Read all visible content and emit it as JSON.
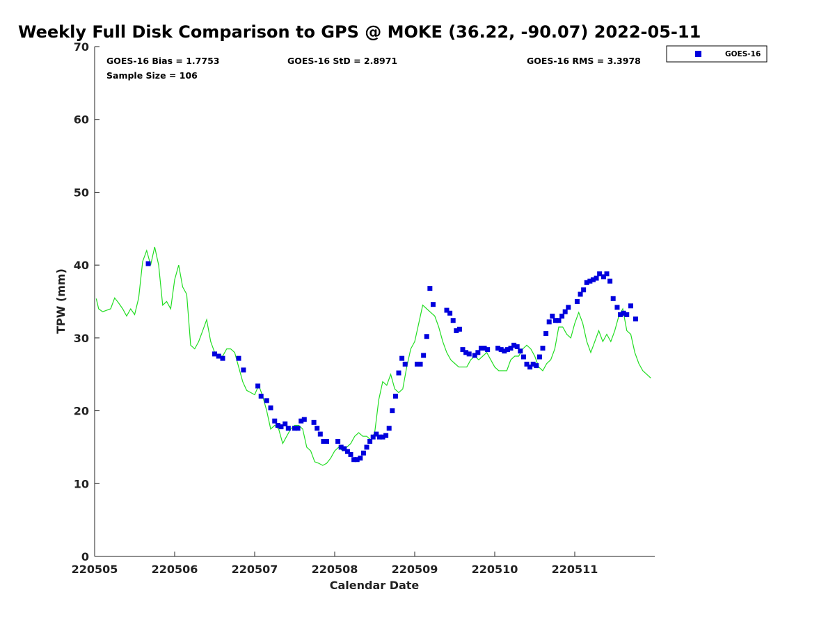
{
  "chart_data": {
    "type": "scatter",
    "title": "Weekly Full Disk Comparison to GPS @ MOKE (36.22, -90.07) 2022-05-11",
    "xlabel": "Calendar Date",
    "ylabel": "TPW (mm)",
    "xlim": [
      0,
      7
    ],
    "ylim": [
      0,
      70
    ],
    "x_ticks": [
      0,
      1,
      2,
      3,
      4,
      5,
      6
    ],
    "x_tick_labels": [
      "220505",
      "220506",
      "220507",
      "220508",
      "220509",
      "220510",
      "220511"
    ],
    "y_ticks": [
      0,
      10,
      20,
      30,
      40,
      50,
      60,
      70
    ],
    "y_tick_labels": [
      "0",
      "10",
      "20",
      "30",
      "40",
      "50",
      "60",
      "70"
    ],
    "stats": {
      "bias": "GOES-16 Bias = 1.7753",
      "std": "GOES-16 StD = 2.8971",
      "rms": "GOES-16 RMS = 3.3978",
      "sample": "Sample Size = 106"
    },
    "legend": {
      "position": "top-right-outside",
      "entries": [
        {
          "label": "GOES-16",
          "color": "#0000dd",
          "marker": "square"
        }
      ]
    },
    "series": [
      {
        "name": "GPS",
        "type": "line",
        "color": "#22dd22",
        "x": [
          0.02,
          0.05,
          0.1,
          0.15,
          0.2,
          0.25,
          0.3,
          0.35,
          0.4,
          0.45,
          0.5,
          0.55,
          0.6,
          0.65,
          0.7,
          0.75,
          0.8,
          0.85,
          0.9,
          0.95,
          1.0,
          1.05,
          1.1,
          1.15,
          1.2,
          1.25,
          1.3,
          1.35,
          1.4,
          1.45,
          1.5,
          1.55,
          1.6,
          1.65,
          1.7,
          1.75,
          1.8,
          1.85,
          1.9,
          1.95,
          2.0,
          2.05,
          2.1,
          2.15,
          2.2,
          2.25,
          2.3,
          2.35,
          2.4,
          2.45,
          2.5,
          2.55,
          2.6,
          2.65,
          2.7,
          2.75,
          2.8,
          2.85,
          2.9,
          2.95,
          3.0,
          3.05,
          3.1,
          3.15,
          3.2,
          3.25,
          3.3,
          3.35,
          3.4,
          3.45,
          3.5,
          3.55,
          3.6,
          3.65,
          3.7,
          3.75,
          3.8,
          3.85,
          3.9,
          3.95,
          4.0,
          4.05,
          4.1,
          4.15,
          4.2,
          4.25,
          4.3,
          4.35,
          4.4,
          4.45,
          4.5,
          4.55,
          4.6,
          4.65,
          4.7,
          4.75,
          4.8,
          4.85,
          4.9,
          4.95,
          5.0,
          5.05,
          5.1,
          5.15,
          5.2,
          5.25,
          5.3,
          5.35,
          5.4,
          5.45,
          5.5,
          5.55,
          5.6,
          5.65,
          5.7,
          5.75,
          5.8,
          5.85,
          5.9,
          5.95,
          6.0,
          6.05,
          6.1,
          6.15,
          6.2,
          6.25,
          6.3,
          6.35,
          6.4,
          6.45,
          6.5,
          6.55,
          6.6,
          6.65,
          6.7,
          6.75,
          6.8,
          6.85,
          6.9,
          6.95
        ],
        "y": [
          35.4,
          34.0,
          33.6,
          33.8,
          34.0,
          35.5,
          34.8,
          34.0,
          33.0,
          34.0,
          33.2,
          35.5,
          40.5,
          42.0,
          40.0,
          42.5,
          40.0,
          34.5,
          35.0,
          34.0,
          38.0,
          40.0,
          37.0,
          36.0,
          29.0,
          28.5,
          29.5,
          31.0,
          32.5,
          29.5,
          28.0,
          27.5,
          27.5,
          28.5,
          28.5,
          28.0,
          26.0,
          24.0,
          22.8,
          22.5,
          22.2,
          23.5,
          22.0,
          20.0,
          17.5,
          18.0,
          17.5,
          15.5,
          16.5,
          17.5,
          18.0,
          18.0,
          17.5,
          15.0,
          14.5,
          13.0,
          12.8,
          12.5,
          12.8,
          13.5,
          14.5,
          15.0,
          14.5,
          15.0,
          15.5,
          16.5,
          17.0,
          16.5,
          16.5,
          16.0,
          17.0,
          21.5,
          24.0,
          23.5,
          25.0,
          23.0,
          22.5,
          23.0,
          26.0,
          28.5,
          29.5,
          32.0,
          34.5,
          34.0,
          33.5,
          33.0,
          31.5,
          29.5,
          28.0,
          27.0,
          26.5,
          26.0,
          26.0,
          26.0,
          27.0,
          27.5,
          27.0,
          27.5,
          28.0,
          27.0,
          26.0,
          25.5,
          25.5,
          25.5,
          27.0,
          27.5,
          27.5,
          28.5,
          29.0,
          28.5,
          27.5,
          26.0,
          25.5,
          26.5,
          27.0,
          28.5,
          31.5,
          31.5,
          30.5,
          30.0,
          32.0,
          33.5,
          32.0,
          29.5,
          28.0,
          29.5,
          31.0,
          29.5,
          30.5,
          29.5,
          31.0,
          33.0,
          34.0,
          31.0,
          30.5,
          28.0,
          26.5,
          25.5,
          25.0,
          24.5
        ]
      },
      {
        "name": "GOES-16",
        "type": "scatter",
        "color": "#0000dd",
        "x": [
          0.67,
          1.5,
          1.55,
          1.6,
          1.8,
          1.86,
          2.04,
          2.08,
          2.15,
          2.2,
          2.25,
          2.29,
          2.33,
          2.38,
          2.42,
          2.5,
          2.54,
          2.58,
          2.62,
          2.74,
          2.78,
          2.82,
          2.86,
          2.9,
          3.04,
          3.08,
          3.12,
          3.16,
          3.2,
          3.24,
          3.28,
          3.32,
          3.36,
          3.4,
          3.44,
          3.48,
          3.52,
          3.56,
          3.6,
          3.64,
          3.68,
          3.72,
          3.76,
          3.8,
          3.84,
          3.88,
          4.03,
          4.07,
          4.11,
          4.15,
          4.19,
          4.23,
          4.4,
          4.44,
          4.48,
          4.52,
          4.56,
          4.6,
          4.64,
          4.68,
          4.75,
          4.79,
          4.83,
          4.87,
          4.91,
          5.04,
          5.08,
          5.12,
          5.16,
          5.2,
          5.24,
          5.28,
          5.32,
          5.36,
          5.4,
          5.44,
          5.48,
          5.52,
          5.56,
          5.6,
          5.64,
          5.68,
          5.72,
          5.76,
          5.8,
          5.84,
          5.88,
          5.92,
          6.03,
          6.07,
          6.11,
          6.15,
          6.19,
          6.23,
          6.27,
          6.31,
          6.36,
          6.4,
          6.44,
          6.48,
          6.53,
          6.57,
          6.61,
          6.65,
          6.7,
          6.76
        ],
        "y": [
          40.2,
          27.8,
          27.5,
          27.2,
          27.2,
          25.6,
          23.4,
          22.0,
          21.4,
          20.4,
          18.6,
          18.0,
          17.8,
          18.2,
          17.6,
          17.6,
          17.6,
          18.6,
          18.8,
          18.4,
          17.6,
          16.8,
          15.8,
          15.8,
          15.8,
          15.0,
          14.8,
          14.4,
          14.0,
          13.3,
          13.3,
          13.5,
          14.2,
          15.0,
          15.8,
          16.4,
          16.8,
          16.4,
          16.4,
          16.6,
          17.6,
          20.0,
          22.0,
          25.2,
          27.2,
          26.4,
          26.4,
          26.4,
          27.6,
          30.2,
          36.8,
          34.6,
          33.8,
          33.4,
          32.4,
          31.0,
          31.2,
          28.4,
          28.0,
          27.8,
          27.6,
          28.0,
          28.6,
          28.6,
          28.4,
          28.6,
          28.4,
          28.2,
          28.4,
          28.6,
          29.0,
          28.8,
          28.2,
          27.4,
          26.4,
          26.0,
          26.4,
          26.2,
          27.4,
          28.6,
          30.6,
          32.2,
          33.0,
          32.4,
          32.4,
          33.0,
          33.6,
          34.2,
          35.0,
          36.0,
          36.6,
          37.6,
          37.8,
          38.0,
          38.2,
          38.8,
          38.4,
          38.8,
          37.8,
          35.4,
          34.2,
          33.2,
          33.4,
          33.2,
          34.4,
          32.6
        ]
      }
    ]
  }
}
